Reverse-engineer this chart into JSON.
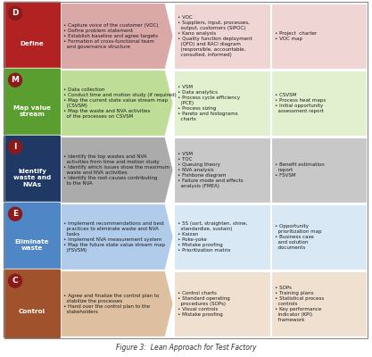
{
  "rows": [
    {
      "letter": "D",
      "label": "Define",
      "bg_color": "#B22222",
      "row_bg": "#F0D5D5",
      "arrow_color": "#DBA8A8",
      "col2_text": "• Capture voice of the customer (VOC)\n• Define problem statement\n• Establish baseline and agree targets\n• Formation of cross-functional team\n  and governance structure",
      "col3_text": "• VOC\n• Suppliers, input, processes,\n  output, customers (SIPOC)\n• Kano analysis\n• Quality function deployment\n  (QFD) and RACI diagram\n  (responsible, accountable,\n  consulted, informed)",
      "col4_text": "• Project  charter\n• VOC map"
    },
    {
      "letter": "M",
      "label": "Map value\nstream",
      "bg_color": "#5A9E2F",
      "row_bg": "#E2F0D0",
      "arrow_color": "#BEDD96",
      "col2_text": "• Data collection\n• Conduct time and motion study (if required)\n• Map the current state value stream map\n  (CSVSM)\n• Map the waste and NVA activities\n  of the processes on CSVSM",
      "col3_text": "• VSM\n• Data analytics\n• Process cycle efficiency\n  (PCE)\n• Process sizing\n• Pareto and histograms\n  charts",
      "col4_text": "• CSVSM\n• Process heat maps\n• Initial opportunity\n  assessment report"
    },
    {
      "letter": "I",
      "label": "Identify\nwaste and\nNVAs",
      "bg_color": "#1F3864",
      "row_bg": "#C8C8C8",
      "arrow_color": "#ABABAB",
      "col2_text": "• Identify the top wastes and NVA\n  activities from time and motion study\n• Identify which issues show the maximum\n  waste and NVA activities\n• Identify the root causes contributing\n  to the NVA",
      "col3_text": "• VSM\n• TOC\n• Queuing theory\n• NVA analysis\n• Fishbone diagram\n• Failure mode and effects\n  analysis (FMEA)",
      "col4_text": "• Benefit estimation\n  report\n• FSVSM"
    },
    {
      "letter": "E",
      "label": "Eliminate\nwaste",
      "bg_color": "#4F86C6",
      "row_bg": "#D9E8F5",
      "arrow_color": "#B0CCEA",
      "col2_text": "• Implement recommendations and best\n  practices to eliminate waste and NVA\n  tasks\n• Implement NVA measurement system\n• Map the future state value stream map\n  (FSVSM)",
      "col3_text": "• 5S (sort, straighten, shine,\n  standardize, sustain)\n• Kaizan\n• Poke-yoke\n• Mistake proofing\n• Prioritization matrix",
      "col4_text": "• Opportunity\n  prioritization map\n• Business case\n  and solution\n  documents"
    },
    {
      "letter": "C",
      "label": "Control",
      "bg_color": "#A0522D",
      "row_bg": "#F0E0D0",
      "arrow_color": "#DEC0A0",
      "col2_text": "• Agree and finalize the control plan to\n  stabilize the processes\n• Hand over the control plan to the\n  stakeholders",
      "col3_text": "• Control charts\n• Standard operating\n  procedures (SOPs)\n• Visual controls\n• Mistake proofing",
      "col4_text": "• SOPs\n• Training plans\n• Statistical process\n  controls\n• Key performance\n  indicator (KPI)\n  framework"
    }
  ],
  "title": "Figure 3:  Lean Approach for Test Factory",
  "fig_width": 4.17,
  "fig_height": 4.0,
  "dpi": 100,
  "circle_color": "#8B1A1A",
  "outer_border_color": "#888888"
}
